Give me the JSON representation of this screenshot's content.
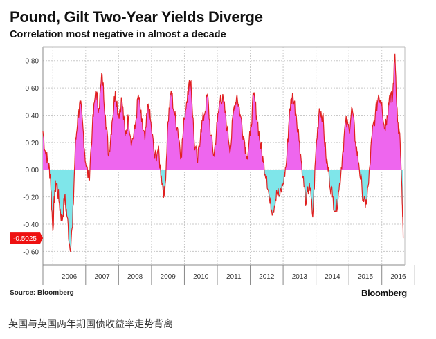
{
  "header": {
    "title": "Pound, Gilt Two-Year Yields Diverge",
    "subtitle": "Correlation most negative in almost a decade"
  },
  "footer": {
    "source": "Source: Bloomberg",
    "brand": "Bloomberg",
    "caption": "英国与英国两年期国债收益率走势背离"
  },
  "colors": {
    "positive_fill": "#ee66ee",
    "negative_fill": "#7fe6ea",
    "line": "#e02020",
    "callout_bg": "#ee1111",
    "grid": "#c8c8c8"
  },
  "chart_data": {
    "type": "area",
    "title": "Pound, Gilt Two-Year Yields Diverge",
    "subtitle": "Correlation most negative in almost a decade",
    "xlabel": "",
    "ylabel": "",
    "ylim": [
      -0.7,
      0.9
    ],
    "yticks": [
      0.8,
      0.6,
      0.4,
      0.2,
      0.0,
      -0.2,
      -0.4,
      -0.6
    ],
    "ytick_labels": [
      "0.80",
      "0.60",
      "0.40",
      "0.20",
      "0.00",
      "-0.20",
      "-0.40",
      "-0.60"
    ],
    "xlim": [
      2005.7,
      2016.7
    ],
    "x_categories": [
      "2006",
      "2007",
      "2008",
      "2009",
      "2010",
      "2011",
      "2012",
      "2013",
      "2014",
      "2015",
      "2016"
    ],
    "grid": true,
    "callout": {
      "label": "-0.5025",
      "value": -0.5025
    },
    "series": [
      {
        "x": [
          2005.7,
          2005.78,
          2005.86,
          2005.93,
          2006.0,
          2006.06,
          2006.12,
          2006.2,
          2006.28,
          2006.36,
          2006.44,
          2006.52,
          2006.6,
          2006.68,
          2006.76,
          2006.84,
          2006.92,
          2007.0,
          2007.1,
          2007.2,
          2007.3,
          2007.4,
          2007.5,
          2007.6,
          2007.7,
          2007.8,
          2007.9,
          2008.0,
          2008.1,
          2008.2,
          2008.3,
          2008.4,
          2008.5,
          2008.6,
          2008.7,
          2008.8,
          2008.9,
          2009.0,
          2009.1,
          2009.2,
          2009.3,
          2009.4,
          2009.5,
          2009.6,
          2009.7,
          2009.8,
          2009.9,
          2010.0,
          2010.1,
          2010.2,
          2010.3,
          2010.4,
          2010.5,
          2010.6,
          2010.7,
          2010.8,
          2010.9,
          2011.0,
          2011.1,
          2011.2,
          2011.3,
          2011.4,
          2011.5,
          2011.6,
          2011.7,
          2011.8,
          2011.9,
          2012.0,
          2012.1,
          2012.2,
          2012.3,
          2012.4,
          2012.5,
          2012.6,
          2012.7,
          2012.8,
          2012.9,
          2013.0,
          2013.1,
          2013.2,
          2013.3,
          2013.4,
          2013.5,
          2013.6,
          2013.7,
          2013.8,
          2013.9,
          2014.0,
          2014.1,
          2014.2,
          2014.3,
          2014.4,
          2014.5,
          2014.6,
          2014.7,
          2014.8,
          2014.9,
          2015.0,
          2015.1,
          2015.2,
          2015.3,
          2015.4,
          2015.5,
          2015.6,
          2015.7,
          2015.8,
          2015.9,
          2016.0,
          2016.08,
          2016.16,
          2016.24,
          2016.32,
          2016.4,
          2016.48,
          2016.56,
          2016.62
        ],
        "y": [
          0.28,
          0.12,
          0.05,
          -0.05,
          -0.45,
          -0.15,
          -0.1,
          -0.25,
          -0.38,
          -0.2,
          -0.35,
          -0.58,
          -0.42,
          0.15,
          0.4,
          0.48,
          0.3,
          0.05,
          -0.08,
          0.3,
          0.58,
          0.45,
          0.7,
          0.4,
          0.1,
          0.35,
          0.58,
          0.4,
          0.52,
          0.25,
          0.38,
          0.2,
          0.3,
          0.55,
          0.35,
          0.22,
          0.48,
          0.3,
          0.08,
          0.15,
          -0.05,
          -0.2,
          0.35,
          0.58,
          0.4,
          0.3,
          0.1,
          0.38,
          0.58,
          0.65,
          0.2,
          0.05,
          0.3,
          0.4,
          0.55,
          0.25,
          0.1,
          0.35,
          0.55,
          0.48,
          0.3,
          0.15,
          0.45,
          0.55,
          0.4,
          0.25,
          0.1,
          0.25,
          0.55,
          0.4,
          0.2,
          0.05,
          -0.05,
          -0.25,
          -0.3,
          -0.15,
          -0.2,
          -0.1,
          0.05,
          0.45,
          0.55,
          0.4,
          0.2,
          -0.05,
          -0.25,
          -0.1,
          -0.35,
          0.15,
          0.45,
          0.4,
          0.1,
          -0.05,
          -0.2,
          -0.3,
          -0.15,
          0.1,
          0.35,
          0.3,
          0.45,
          0.2,
          0.05,
          -0.15,
          -0.28,
          -0.1,
          0.25,
          0.4,
          0.55,
          0.5,
          0.3,
          0.4,
          0.55,
          0.5,
          0.85,
          0.35,
          0.2,
          -0.25
        ],
        "end": -0.5025
      }
    ]
  }
}
